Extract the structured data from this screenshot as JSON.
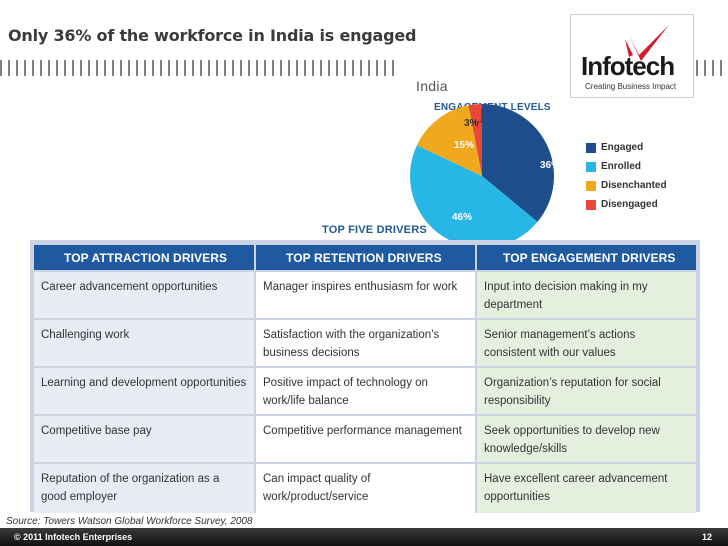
{
  "slide": {
    "title": "Only 36% of the workforce in India is engaged",
    "source": "Source: Towers Watson Global  Workforce Survey, 2008"
  },
  "logo": {
    "name": "Infotech",
    "tagline": "Creating Business Impact",
    "colors": {
      "text": "#1a1a1a",
      "accent": "#d0202a"
    }
  },
  "chart_data": {
    "type": "pie",
    "country": "India",
    "title": "ENGAGEMENT LEVELS",
    "slices": [
      {
        "label": "Engaged",
        "value": 36,
        "display": "36%",
        "color": "#1f4e8c"
      },
      {
        "label": "Enrolled",
        "value": 46,
        "display": "46%",
        "color": "#28b6e6"
      },
      {
        "label": "Disenchanted",
        "value": 15,
        "display": "15%",
        "color": "#f0a81c"
      },
      {
        "label": "Disengaged",
        "value": 3,
        "display": "3%",
        "color": "#e8473a"
      }
    ],
    "legend_position": "right"
  },
  "drivers": {
    "heading": "TOP FIVE DRIVERS",
    "columns": [
      "TOP ATTRACTION DRIVERS",
      "TOP RETENTION DRIVERS",
      "TOP ENGAGEMENT DRIVERS"
    ],
    "rows": [
      [
        "Career advancement opportunities",
        "Manager inspires enthusiasm for work",
        "Input into decision making in my department"
      ],
      [
        "Challenging work",
        "Satisfaction with the organization’s business decisions",
        "Senior management’s actions consistent with our values"
      ],
      [
        "Learning and development opportunities",
        "Positive impact of technology on work/life balance",
        "Organization’s reputation for social responsibility"
      ],
      [
        "Competitive base pay",
        "Competitive performance management",
        "Seek opportunities to develop new knowledge/skills"
      ],
      [
        "Reputation of the organization as a good employer",
        "Can impact quality of work/product/service",
        "Have excellent career advancement opportunities"
      ]
    ]
  },
  "footer": {
    "copyright": "© 2011 Infotech Enterprises",
    "page_number": "12"
  }
}
